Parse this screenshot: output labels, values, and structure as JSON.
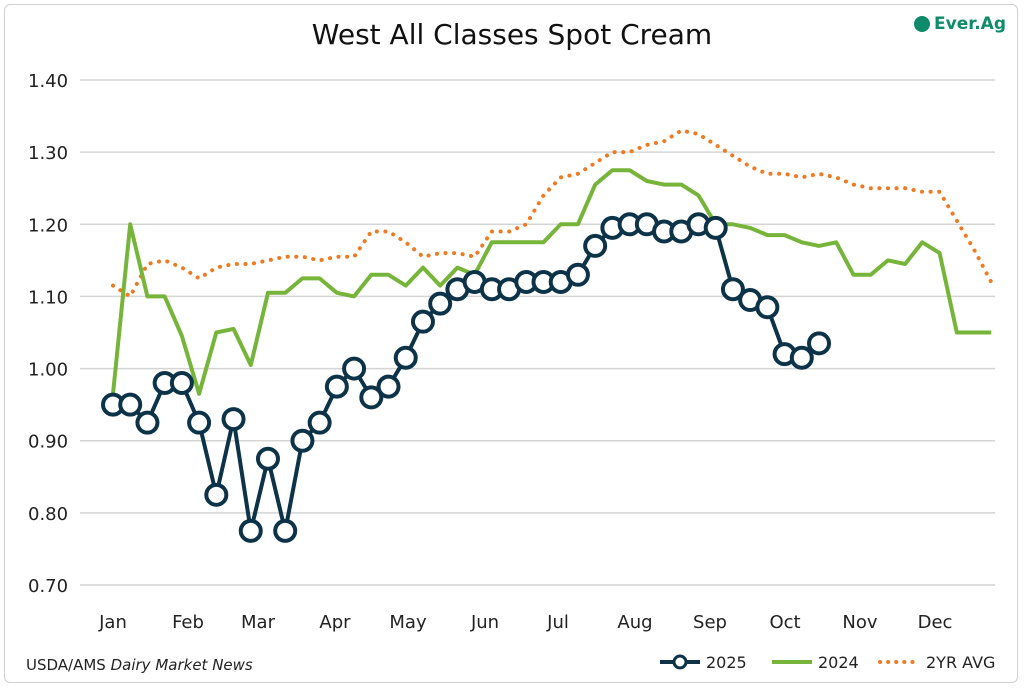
{
  "chart_data": {
    "type": "line",
    "title": "West All Classes Spot Cream",
    "source": "USDA/AMS",
    "source_italic": "Dairy Market News",
    "logo_text": "Ever.Ag",
    "xlabel": "",
    "ylabel": "",
    "ylim": [
      0.7,
      1.4
    ],
    "yticks": [
      "0.70",
      "0.80",
      "0.90",
      "1.00",
      "1.10",
      "1.20",
      "1.30",
      "1.40"
    ],
    "x_unit": "week of year",
    "xlim": [
      1,
      52
    ],
    "month_labels": [
      "Jan",
      "Feb",
      "Mar",
      "Apr",
      "May",
      "Jun",
      "Jul",
      "Aug",
      "Sep",
      "Oct",
      "Nov",
      "Dec"
    ],
    "grid": true,
    "legend_position": "bottom-right",
    "series": [
      {
        "name": "2025",
        "color": "#0d3349",
        "style": "line-circle-markers",
        "values": [
          0.95,
          0.95,
          0.925,
          0.98,
          0.98,
          0.925,
          0.825,
          0.93,
          0.775,
          0.875,
          0.775,
          0.9,
          0.925,
          0.975,
          1.0,
          0.96,
          0.975,
          1.015,
          1.065,
          1.09,
          1.11,
          1.12,
          1.11,
          1.11,
          1.12,
          1.12,
          1.12,
          1.13,
          1.17,
          1.195,
          1.2,
          1.2,
          1.19,
          1.19,
          1.2,
          1.195,
          1.11,
          1.095,
          1.085,
          1.02,
          1.015,
          1.035
        ]
      },
      {
        "name": "2024",
        "color": "#76b43a",
        "style": "solid",
        "values": [
          0.965,
          1.2,
          1.1,
          1.1,
          1.045,
          0.965,
          1.05,
          1.055,
          1.005,
          1.105,
          1.105,
          1.125,
          1.125,
          1.105,
          1.1,
          1.13,
          1.13,
          1.115,
          1.14,
          1.115,
          1.14,
          1.13,
          1.175,
          1.175,
          1.175,
          1.175,
          1.2,
          1.2,
          1.255,
          1.275,
          1.275,
          1.26,
          1.255,
          1.255,
          1.24,
          1.2,
          1.2,
          1.195,
          1.185,
          1.185,
          1.175,
          1.17,
          1.175,
          1.13,
          1.13,
          1.15,
          1.145,
          1.175,
          1.16,
          1.05,
          1.05,
          1.05
        ]
      },
      {
        "name": "2YR AVG",
        "color": "#f07a22",
        "style": "dotted",
        "values": [
          1.115,
          1.1,
          1.145,
          1.15,
          1.14,
          1.125,
          1.14,
          1.145,
          1.145,
          1.15,
          1.155,
          1.155,
          1.15,
          1.155,
          1.155,
          1.19,
          1.19,
          1.175,
          1.155,
          1.16,
          1.16,
          1.155,
          1.19,
          1.19,
          1.2,
          1.24,
          1.265,
          1.27,
          1.285,
          1.3,
          1.3,
          1.31,
          1.315,
          1.33,
          1.325,
          1.31,
          1.295,
          1.28,
          1.27,
          1.27,
          1.265,
          1.27,
          1.265,
          1.255,
          1.25,
          1.25,
          1.25,
          1.245,
          1.245,
          1.205,
          1.165,
          1.12
        ]
      }
    ]
  }
}
